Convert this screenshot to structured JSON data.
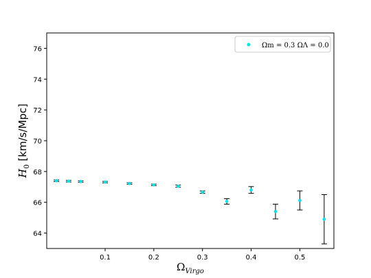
{
  "chart_data": {
    "type": "scatter",
    "title": "",
    "xlabel": "Ω",
    "xlabel_sub": "Virgo",
    "ylabel": "H",
    "ylabel_sub": "0",
    "ylabel_unit": " [km/s/Mpc]",
    "xlim": [
      -0.02,
      0.57
    ],
    "ylim": [
      63.0,
      77.0
    ],
    "xticks": [
      0.1,
      0.2,
      0.3,
      0.4,
      0.5
    ],
    "xtick_labels": [
      "0.1",
      "0.2",
      "0.3",
      "0.4",
      "0.5"
    ],
    "yticks": [
      64,
      66,
      68,
      70,
      72,
      74,
      76
    ],
    "ytick_labels": [
      "64",
      "66",
      "68",
      "70",
      "72",
      "74",
      "76"
    ],
    "grid": false,
    "legend_position": "top-right",
    "series": [
      {
        "name": "Ωm = 0.3  ΩΛ = 0.0",
        "color": "#00e5ee",
        "errorbar_color": "#000000",
        "points": [
          {
            "x": 0.0,
            "y": 67.4,
            "err": 0.05
          },
          {
            "x": 0.025,
            "y": 67.37,
            "err": 0.05
          },
          {
            "x": 0.05,
            "y": 67.35,
            "err": 0.05
          },
          {
            "x": 0.1,
            "y": 67.31,
            "err": 0.05
          },
          {
            "x": 0.15,
            "y": 67.22,
            "err": 0.05
          },
          {
            "x": 0.2,
            "y": 67.13,
            "err": 0.05
          },
          {
            "x": 0.25,
            "y": 67.05,
            "err": 0.07
          },
          {
            "x": 0.3,
            "y": 66.66,
            "err": 0.08
          },
          {
            "x": 0.35,
            "y": 66.06,
            "err": 0.18
          },
          {
            "x": 0.4,
            "y": 66.8,
            "err": 0.22
          },
          {
            "x": 0.45,
            "y": 65.4,
            "err": 0.48
          },
          {
            "x": 0.5,
            "y": 66.12,
            "err": 0.62
          },
          {
            "x": 0.55,
            "y": 64.9,
            "err": 1.6
          }
        ]
      }
    ]
  }
}
